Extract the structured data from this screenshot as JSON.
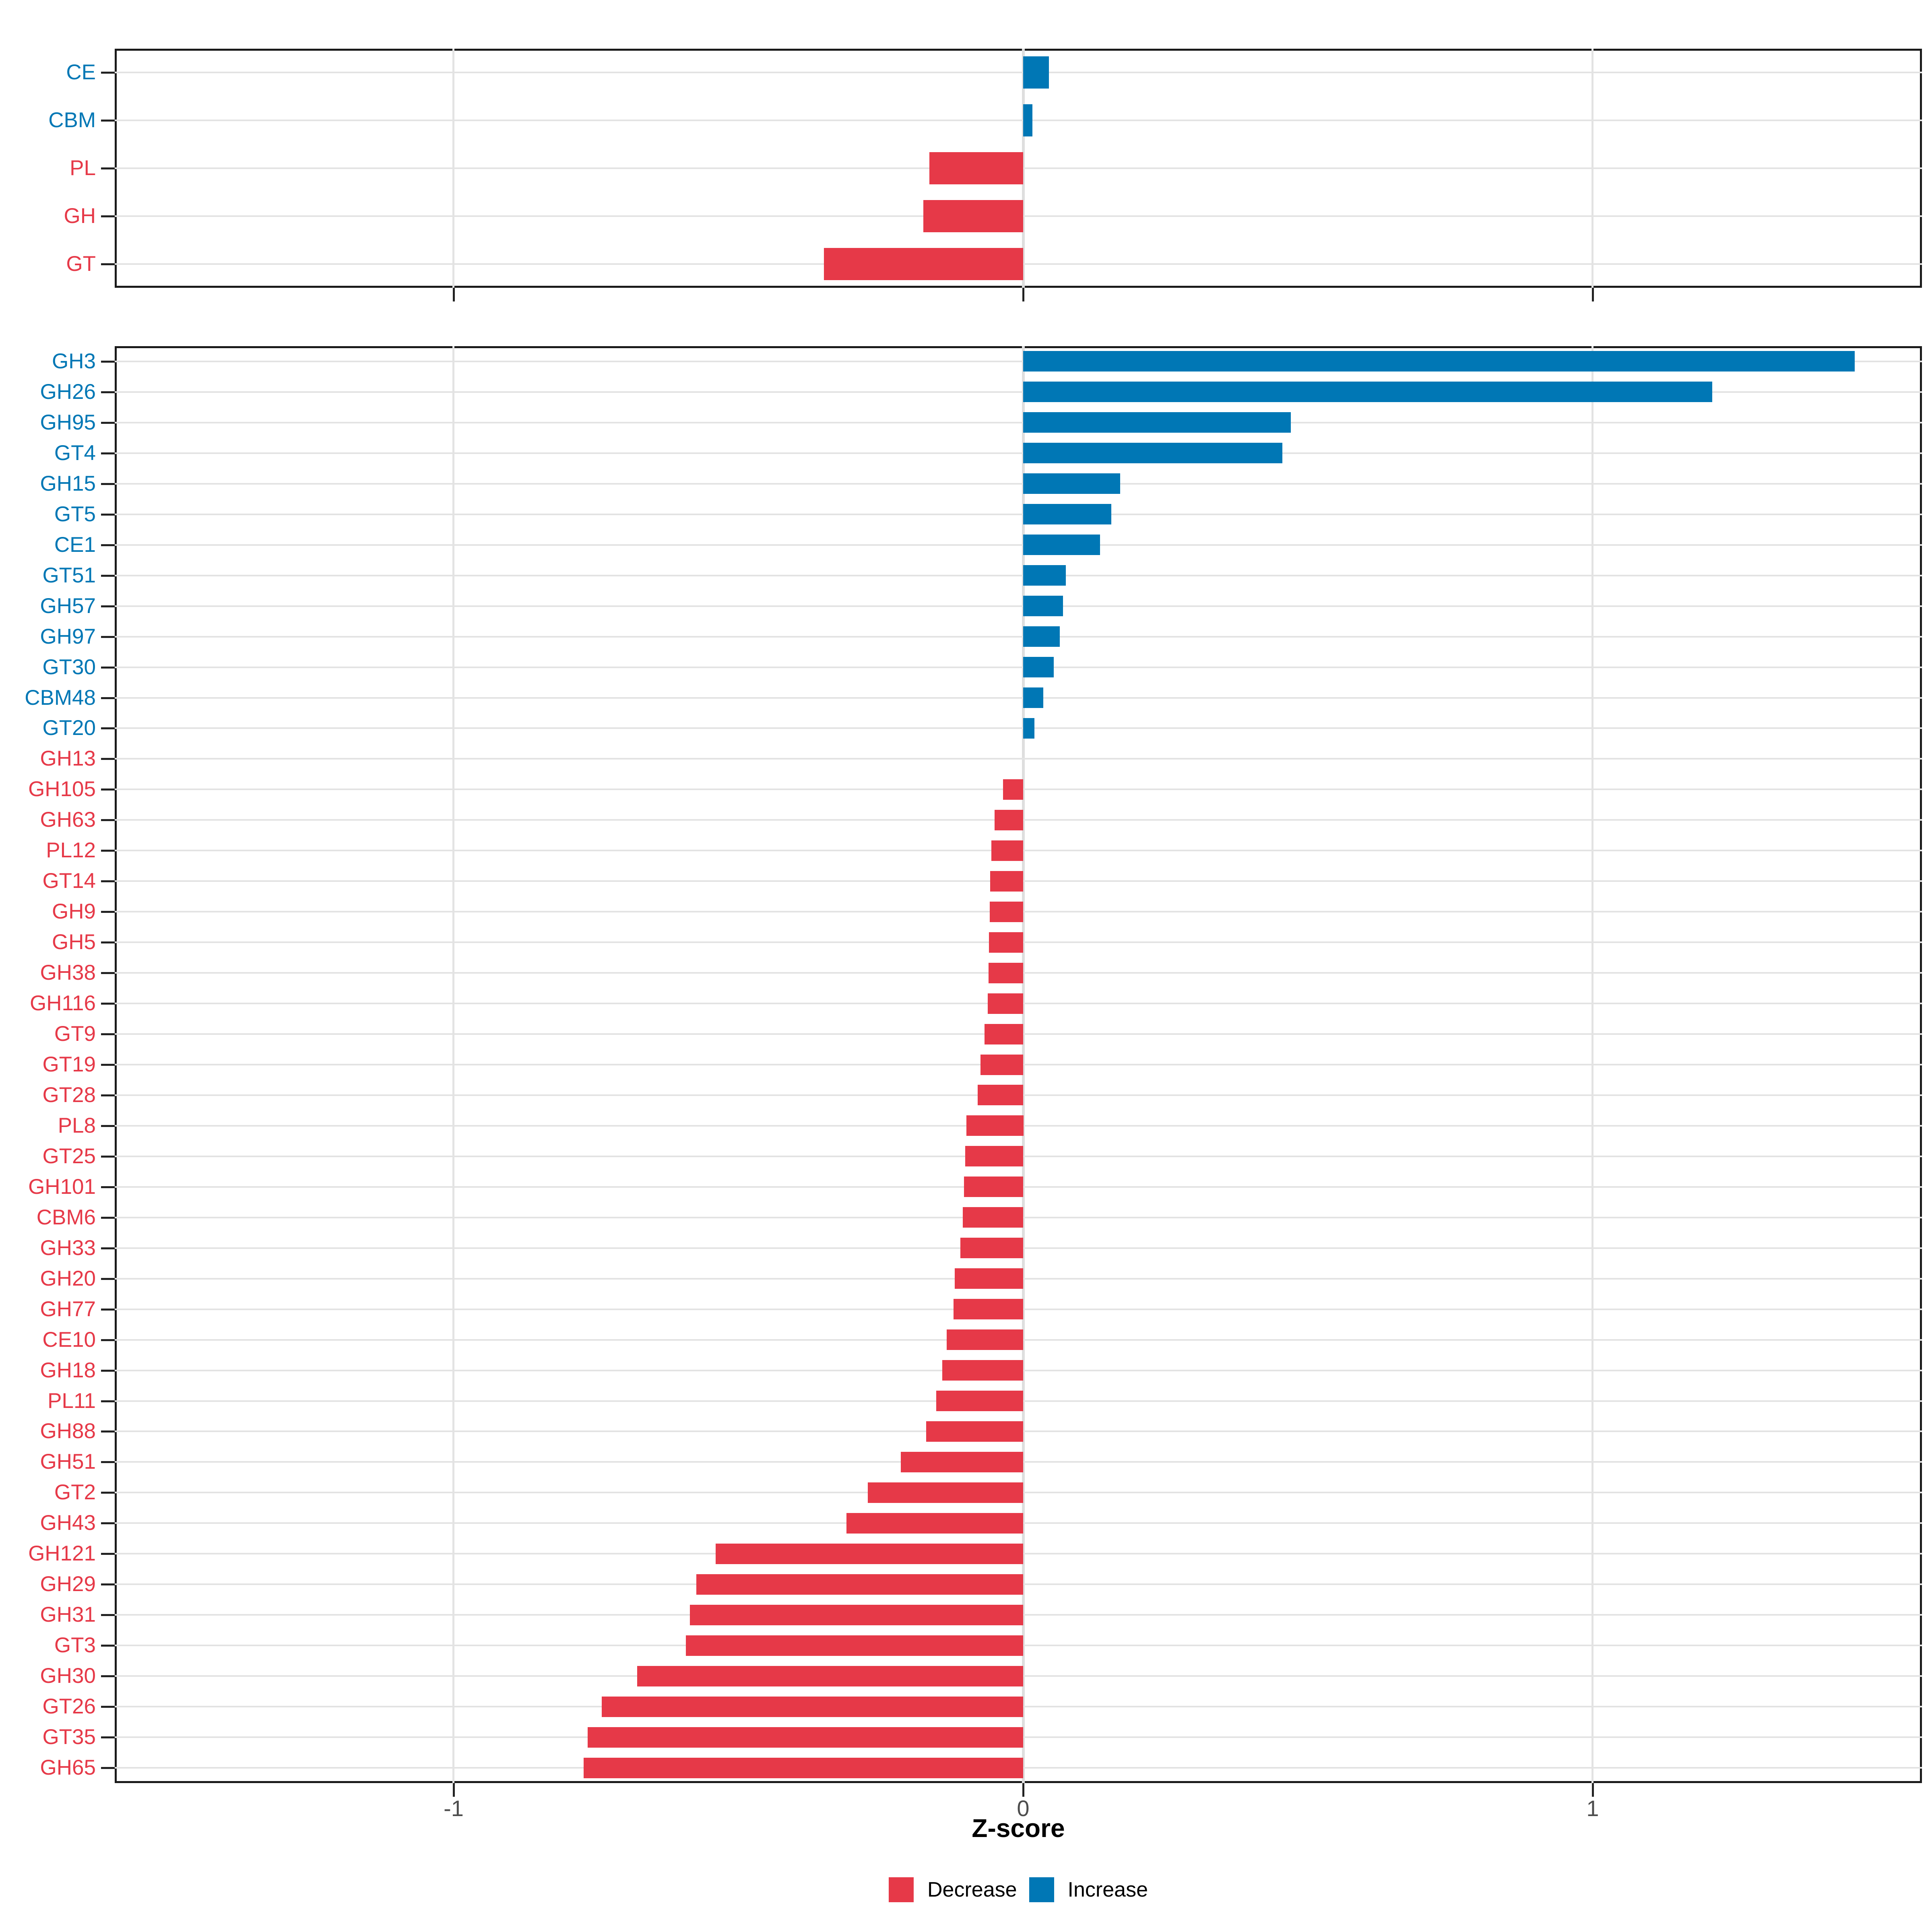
{
  "chart_data": {
    "type": "bar",
    "orientation": "horizontal",
    "title": "",
    "xlabel": "Z-score",
    "ylabel": "",
    "x_axis": {
      "range": [
        -1.6,
        1.58
      ],
      "ticks": [
        {
          "label": "-1",
          "value": -1
        },
        {
          "label": "0",
          "value": 0
        },
        {
          "label": "1",
          "value": 1
        }
      ]
    },
    "grid": true,
    "legend_position": "bottom",
    "colors": {
      "decrease": "#E63948",
      "increase": "#0077B5"
    },
    "legend": [
      {
        "label": "Decrease",
        "color": "#E63948"
      },
      {
        "label": "Increase",
        "color": "#0077B5"
      }
    ],
    "panels": [
      {
        "name": "cazyme-class",
        "rows": [
          {
            "label": "CE",
            "value": 0.045,
            "direction": "increase"
          },
          {
            "label": "CBM",
            "value": 0.016,
            "direction": "increase"
          },
          {
            "label": "PL",
            "value": -0.165,
            "direction": "decrease"
          },
          {
            "label": "GH",
            "value": -0.175,
            "direction": "decrease"
          },
          {
            "label": "GT",
            "value": -0.35,
            "direction": "decrease"
          }
        ]
      },
      {
        "name": "cazyme-family",
        "rows": [
          {
            "label": "GH3",
            "value": 1.46,
            "direction": "increase"
          },
          {
            "label": "GH26",
            "value": 1.21,
            "direction": "increase"
          },
          {
            "label": "GH95",
            "value": 0.47,
            "direction": "increase"
          },
          {
            "label": "GT4",
            "value": 0.455,
            "direction": "increase"
          },
          {
            "label": "GH15",
            "value": 0.17,
            "direction": "increase"
          },
          {
            "label": "GT5",
            "value": 0.155,
            "direction": "increase"
          },
          {
            "label": "CE1",
            "value": 0.135,
            "direction": "increase"
          },
          {
            "label": "GT51",
            "value": 0.075,
            "direction": "increase"
          },
          {
            "label": "GH57",
            "value": 0.07,
            "direction": "increase"
          },
          {
            "label": "GH97",
            "value": 0.064,
            "direction": "increase"
          },
          {
            "label": "GT30",
            "value": 0.054,
            "direction": "increase"
          },
          {
            "label": "CBM48",
            "value": 0.035,
            "direction": "increase"
          },
          {
            "label": "GT20",
            "value": 0.02,
            "direction": "increase"
          },
          {
            "label": "GH13",
            "value": 0.0,
            "direction": "decrease"
          },
          {
            "label": "GH105",
            "value": -0.035,
            "direction": "decrease"
          },
          {
            "label": "GH63",
            "value": -0.05,
            "direction": "decrease"
          },
          {
            "label": "PL12",
            "value": -0.056,
            "direction": "decrease"
          },
          {
            "label": "GT14",
            "value": -0.058,
            "direction": "decrease"
          },
          {
            "label": "GH9",
            "value": -0.059,
            "direction": "decrease"
          },
          {
            "label": "GH5",
            "value": -0.06,
            "direction": "decrease"
          },
          {
            "label": "GH38",
            "value": -0.061,
            "direction": "decrease"
          },
          {
            "label": "GH116",
            "value": -0.062,
            "direction": "decrease"
          },
          {
            "label": "GT9",
            "value": -0.068,
            "direction": "decrease"
          },
          {
            "label": "GT19",
            "value": -0.075,
            "direction": "decrease"
          },
          {
            "label": "GT28",
            "value": -0.08,
            "direction": "decrease"
          },
          {
            "label": "PL8",
            "value": -0.1,
            "direction": "decrease"
          },
          {
            "label": "GT25",
            "value": -0.102,
            "direction": "decrease"
          },
          {
            "label": "GH101",
            "value": -0.104,
            "direction": "decrease"
          },
          {
            "label": "CBM6",
            "value": -0.106,
            "direction": "decrease"
          },
          {
            "label": "GH33",
            "value": -0.11,
            "direction": "decrease"
          },
          {
            "label": "GH20",
            "value": -0.12,
            "direction": "decrease"
          },
          {
            "label": "GH77",
            "value": -0.122,
            "direction": "decrease"
          },
          {
            "label": "CE10",
            "value": -0.134,
            "direction": "decrease"
          },
          {
            "label": "GH18",
            "value": -0.142,
            "direction": "decrease"
          },
          {
            "label": "PL11",
            "value": -0.153,
            "direction": "decrease"
          },
          {
            "label": "GH88",
            "value": -0.17,
            "direction": "decrease"
          },
          {
            "label": "GH51",
            "value": -0.215,
            "direction": "decrease"
          },
          {
            "label": "GT2",
            "value": -0.273,
            "direction": "decrease"
          },
          {
            "label": "GH43",
            "value": -0.31,
            "direction": "decrease"
          },
          {
            "label": "GH121",
            "value": -0.54,
            "direction": "decrease"
          },
          {
            "label": "GH29",
            "value": -0.574,
            "direction": "decrease"
          },
          {
            "label": "GH31",
            "value": -0.585,
            "direction": "decrease"
          },
          {
            "label": "GT3",
            "value": -0.592,
            "direction": "decrease"
          },
          {
            "label": "GH30",
            "value": -0.678,
            "direction": "decrease"
          },
          {
            "label": "GT26",
            "value": -0.74,
            "direction": "decrease"
          },
          {
            "label": "GT35",
            "value": -0.765,
            "direction": "decrease"
          },
          {
            "label": "GH65",
            "value": -0.772,
            "direction": "decrease"
          }
        ]
      }
    ]
  }
}
